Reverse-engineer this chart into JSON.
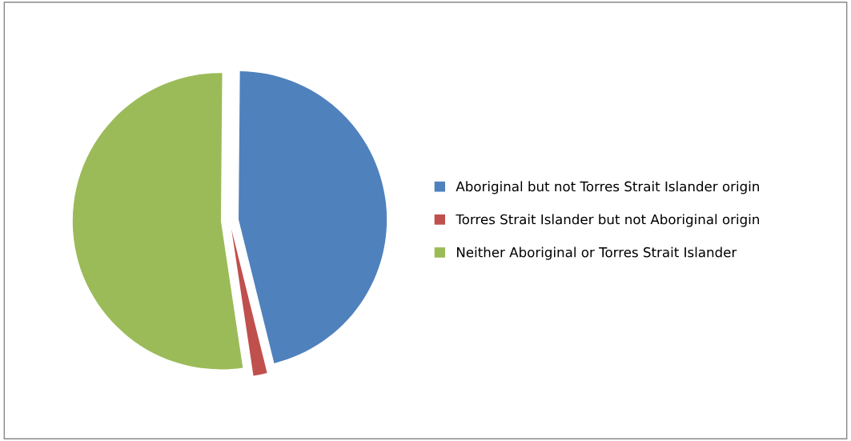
{
  "chart_data": {
    "type": "pie",
    "categories": [
      "Aboriginal but not Torres Strait Islander origin",
      "Torres Strait Islander but not Aboriginal origin",
      "Neither Aboriginal or Torres Strait Islander"
    ],
    "values": [
      46,
      1.5,
      52.5
    ],
    "colors": [
      "#4f81bd",
      "#c0504d",
      "#9bbb59"
    ],
    "legend": "right"
  }
}
